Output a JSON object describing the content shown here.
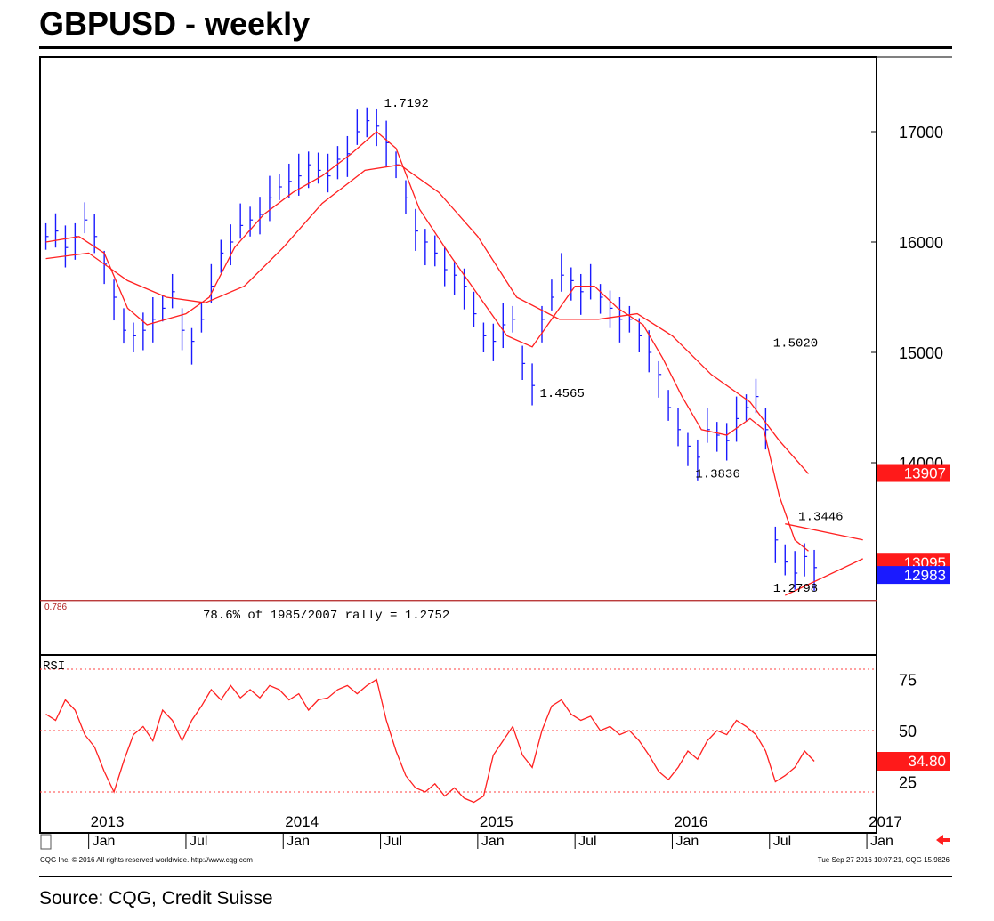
{
  "title": "GBPUSD - weekly",
  "source": "Source: CQG, Credit Suisse",
  "footer": {
    "left": "CQG Inc. © 2016 All rights reserved worldwide. http://www.cqg.com",
    "right": "Tue Sep 27 2016 10:07:21, CQG 15.9826"
  },
  "colors": {
    "price_bars": "#1a1aff",
    "moving_averages": "#ff2020",
    "rsi_line": "#ff2020",
    "tag_red": "#ff1a1a",
    "tag_blue": "#1a1aff"
  },
  "chart_data": [
    {
      "type": "line",
      "subtype": "ohlc-bars with moving averages",
      "title": "GBPUSD - weekly",
      "y_axis": {
        "ticks": [
          14000,
          15000,
          16000,
          17000
        ],
        "tick_labels": [
          "14000",
          "15000",
          "16000",
          "17000"
        ],
        "ylim": [
          12700,
          17500
        ]
      },
      "x_axis": {
        "year_labels": [
          "2013",
          "2014",
          "2015",
          "2016",
          "2017"
        ],
        "month_labels": [
          "Jan",
          "Jul",
          "Jan",
          "Jul",
          "Jan",
          "Jul",
          "Jan",
          "Jul",
          "Jan"
        ],
        "range": [
          "2012-10",
          "2016-12"
        ]
      },
      "series": [
        {
          "kind": "price",
          "points": [
            [
              2012.78,
              16050
            ],
            [
              2012.83,
              16100
            ],
            [
              2012.88,
              15950
            ],
            [
              2012.93,
              16050
            ],
            [
              2012.98,
              16200
            ],
            [
              2013.03,
              16050
            ],
            [
              2013.08,
              15800
            ],
            [
              2013.13,
              15500
            ],
            [
              2013.18,
              15200
            ],
            [
              2013.23,
              15150
            ],
            [
              2013.28,
              15200
            ],
            [
              2013.33,
              15300
            ],
            [
              2013.38,
              15400
            ],
            [
              2013.43,
              15550
            ],
            [
              2013.48,
              15200
            ],
            [
              2013.53,
              15100
            ],
            [
              2013.58,
              15300
            ],
            [
              2013.63,
              15600
            ],
            [
              2013.68,
              15900
            ],
            [
              2013.73,
              16000
            ],
            [
              2013.78,
              16150
            ],
            [
              2013.83,
              16200
            ],
            [
              2013.88,
              16250
            ],
            [
              2013.93,
              16400
            ],
            [
              2013.98,
              16500
            ],
            [
              2014.03,
              16550
            ],
            [
              2014.08,
              16600
            ],
            [
              2014.13,
              16700
            ],
            [
              2014.18,
              16650
            ],
            [
              2014.23,
              16600
            ],
            [
              2014.28,
              16750
            ],
            [
              2014.33,
              16800
            ],
            [
              2014.38,
              17000
            ],
            [
              2014.43,
              17100
            ],
            [
              2014.48,
              17050
            ],
            [
              2014.53,
              16900
            ],
            [
              2014.58,
              16700
            ],
            [
              2014.63,
              16400
            ],
            [
              2014.68,
              16100
            ],
            [
              2014.73,
              16000
            ],
            [
              2014.78,
              15900
            ],
            [
              2014.83,
              15750
            ],
            [
              2014.88,
              15700
            ],
            [
              2014.93,
              15600
            ],
            [
              2014.98,
              15350
            ],
            [
              2015.03,
              15150
            ],
            [
              2015.08,
              15100
            ],
            [
              2015.13,
              15250
            ],
            [
              2015.18,
              15300
            ],
            [
              2015.23,
              14900
            ],
            [
              2015.28,
              14700
            ],
            [
              2015.33,
              15300
            ],
            [
              2015.38,
              15500
            ],
            [
              2015.43,
              15700
            ],
            [
              2015.48,
              15650
            ],
            [
              2015.53,
              15550
            ],
            [
              2015.58,
              15600
            ],
            [
              2015.63,
              15500
            ],
            [
              2015.68,
              15400
            ],
            [
              2015.73,
              15300
            ],
            [
              2015.78,
              15300
            ],
            [
              2015.83,
              15150
            ],
            [
              2015.88,
              15000
            ],
            [
              2015.93,
              14800
            ],
            [
              2015.98,
              14500
            ],
            [
              2016.03,
              14300
            ],
            [
              2016.08,
              14150
            ],
            [
              2016.13,
              14050
            ],
            [
              2016.18,
              14300
            ],
            [
              2016.23,
              14250
            ],
            [
              2016.28,
              14200
            ],
            [
              2016.33,
              14400
            ],
            [
              2016.38,
              14500
            ],
            [
              2016.43,
              14600
            ],
            [
              2016.48,
              14300
            ],
            [
              2016.53,
              13300
            ],
            [
              2016.58,
              13100
            ],
            [
              2016.63,
              13000
            ],
            [
              2016.68,
              13150
            ],
            [
              2016.73,
              13050
            ]
          ]
        },
        {
          "kind": "moving-average-fast",
          "points": [
            [
              2012.78,
              16000
            ],
            [
              2012.95,
              16050
            ],
            [
              2013.08,
              15900
            ],
            [
              2013.2,
              15400
            ],
            [
              2013.3,
              15250
            ],
            [
              2013.4,
              15300
            ],
            [
              2013.5,
              15350
            ],
            [
              2013.62,
              15500
            ],
            [
              2013.75,
              15950
            ],
            [
              2013.9,
              16250
            ],
            [
              2014.05,
              16450
            ],
            [
              2014.2,
              16600
            ],
            [
              2014.35,
              16800
            ],
            [
              2014.48,
              17000
            ],
            [
              2014.58,
              16850
            ],
            [
              2014.7,
              16300
            ],
            [
              2014.85,
              15900
            ],
            [
              2014.95,
              15650
            ],
            [
              2015.05,
              15400
            ],
            [
              2015.15,
              15150
            ],
            [
              2015.28,
              15050
            ],
            [
              2015.38,
              15300
            ],
            [
              2015.5,
              15600
            ],
            [
              2015.6,
              15600
            ],
            [
              2015.72,
              15400
            ],
            [
              2015.85,
              15250
            ],
            [
              2015.95,
              14950
            ],
            [
              2016.05,
              14600
            ],
            [
              2016.15,
              14300
            ],
            [
              2016.28,
              14250
            ],
            [
              2016.4,
              14400
            ],
            [
              2016.47,
              14300
            ],
            [
              2016.55,
              13700
            ],
            [
              2016.63,
              13300
            ],
            [
              2016.7,
              13200
            ]
          ]
        },
        {
          "kind": "moving-average-slow",
          "points": [
            [
              2012.78,
              15850
            ],
            [
              2013.0,
              15900
            ],
            [
              2013.2,
              15650
            ],
            [
              2013.4,
              15500
            ],
            [
              2013.6,
              15450
            ],
            [
              2013.8,
              15600
            ],
            [
              2014.0,
              15950
            ],
            [
              2014.2,
              16350
            ],
            [
              2014.42,
              16650
            ],
            [
              2014.6,
              16700
            ],
            [
              2014.8,
              16450
            ],
            [
              2015.0,
              16050
            ],
            [
              2015.2,
              15500
            ],
            [
              2015.42,
              15300
            ],
            [
              2015.62,
              15300
            ],
            [
              2015.82,
              15350
            ],
            [
              2016.0,
              15150
            ],
            [
              2016.2,
              14800
            ],
            [
              2016.4,
              14550
            ],
            [
              2016.55,
              14200
            ],
            [
              2016.7,
              13900
            ]
          ]
        }
      ],
      "price_labels": [
        {
          "text": "1.7192",
          "x": 2014.5,
          "y": 17192
        },
        {
          "text": "1.4565",
          "x": 2015.3,
          "y": 14565
        },
        {
          "text": "1.5020",
          "x": 2016.5,
          "y": 15020
        },
        {
          "text": "1.3836",
          "x": 2016.1,
          "y": 13836
        },
        {
          "text": "1.3446",
          "x": 2016.63,
          "y": 13446
        },
        {
          "text": "1.2798",
          "x": 2016.5,
          "y": 12798
        }
      ],
      "retracement": {
        "tag": "0.786",
        "label": "78.6% of 1985/2007 rally = 1.2752",
        "value": 12752
      },
      "triangle": {
        "upper": {
          "from": [
            2016.58,
            13446
          ],
          "to": [
            2016.98,
            13300
          ]
        },
        "lower": {
          "from": [
            2016.58,
            12798
          ],
          "to": [
            2016.98,
            13130
          ]
        }
      },
      "value_tags": [
        {
          "text": "13907",
          "value": 13907,
          "color": "red"
        },
        {
          "text": "13095",
          "value": 13095,
          "color": "red"
        },
        {
          "text": "12983",
          "value": 12983,
          "color": "blue"
        }
      ]
    },
    {
      "type": "line",
      "title": "RSI",
      "y_axis": {
        "ticks": [
          25,
          50,
          75
        ],
        "tick_labels": [
          "25",
          "50",
          "75"
        ],
        "ylim": [
          10,
          85
        ]
      },
      "reference_lines": [
        80,
        50,
        20
      ],
      "current_value_tag": "34.80",
      "values": [
        [
          2012.78,
          58
        ],
        [
          2012.83,
          55
        ],
        [
          2012.88,
          65
        ],
        [
          2012.93,
          60
        ],
        [
          2012.98,
          48
        ],
        [
          2013.03,
          42
        ],
        [
          2013.08,
          30
        ],
        [
          2013.13,
          20
        ],
        [
          2013.18,
          35
        ],
        [
          2013.23,
          48
        ],
        [
          2013.28,
          52
        ],
        [
          2013.33,
          45
        ],
        [
          2013.38,
          60
        ],
        [
          2013.43,
          55
        ],
        [
          2013.48,
          45
        ],
        [
          2013.53,
          55
        ],
        [
          2013.58,
          62
        ],
        [
          2013.63,
          70
        ],
        [
          2013.68,
          65
        ],
        [
          2013.73,
          72
        ],
        [
          2013.78,
          66
        ],
        [
          2013.83,
          70
        ],
        [
          2013.88,
          66
        ],
        [
          2013.93,
          72
        ],
        [
          2013.98,
          70
        ],
        [
          2014.03,
          65
        ],
        [
          2014.08,
          68
        ],
        [
          2014.13,
          60
        ],
        [
          2014.18,
          65
        ],
        [
          2014.23,
          66
        ],
        [
          2014.28,
          70
        ],
        [
          2014.33,
          72
        ],
        [
          2014.38,
          68
        ],
        [
          2014.43,
          72
        ],
        [
          2014.48,
          75
        ],
        [
          2014.53,
          55
        ],
        [
          2014.58,
          40
        ],
        [
          2014.63,
          28
        ],
        [
          2014.68,
          22
        ],
        [
          2014.73,
          20
        ],
        [
          2014.78,
          24
        ],
        [
          2014.83,
          18
        ],
        [
          2014.88,
          22
        ],
        [
          2014.93,
          17
        ],
        [
          2014.98,
          15
        ],
        [
          2015.03,
          18
        ],
        [
          2015.08,
          38
        ],
        [
          2015.13,
          45
        ],
        [
          2015.18,
          52
        ],
        [
          2015.23,
          38
        ],
        [
          2015.28,
          32
        ],
        [
          2015.33,
          50
        ],
        [
          2015.38,
          62
        ],
        [
          2015.43,
          65
        ],
        [
          2015.48,
          58
        ],
        [
          2015.53,
          55
        ],
        [
          2015.58,
          57
        ],
        [
          2015.63,
          50
        ],
        [
          2015.68,
          52
        ],
        [
          2015.73,
          48
        ],
        [
          2015.78,
          50
        ],
        [
          2015.83,
          45
        ],
        [
          2015.88,
          38
        ],
        [
          2015.93,
          30
        ],
        [
          2015.98,
          26
        ],
        [
          2016.03,
          32
        ],
        [
          2016.08,
          40
        ],
        [
          2016.13,
          36
        ],
        [
          2016.18,
          45
        ],
        [
          2016.23,
          50
        ],
        [
          2016.28,
          48
        ],
        [
          2016.33,
          55
        ],
        [
          2016.38,
          52
        ],
        [
          2016.43,
          48
        ],
        [
          2016.48,
          40
        ],
        [
          2016.53,
          25
        ],
        [
          2016.58,
          28
        ],
        [
          2016.63,
          32
        ],
        [
          2016.68,
          40
        ],
        [
          2016.73,
          35
        ]
      ]
    }
  ]
}
